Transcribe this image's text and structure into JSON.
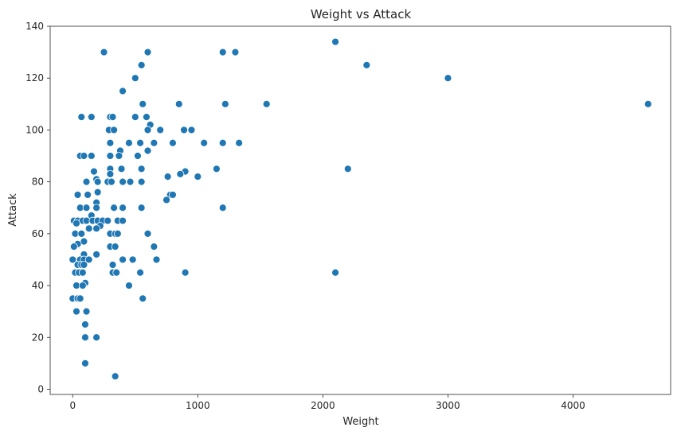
{
  "chart_data": {
    "type": "scatter",
    "title": "Weight vs Attack",
    "xlabel": "Weight",
    "ylabel": "Attack",
    "xlim": [
      -180,
      4780
    ],
    "ylim": [
      -2,
      140
    ],
    "xticks": [
      0,
      1000,
      2000,
      3000,
      4000
    ],
    "yticks": [
      0,
      20,
      40,
      60,
      80,
      100,
      120,
      140
    ],
    "grid": false,
    "legend": "none",
    "marker_color": "#1f77b4",
    "marker_edge": "#ffffff",
    "points": [
      {
        "x": 250,
        "y": 130
      },
      {
        "x": 600,
        "y": 130
      },
      {
        "x": 1200,
        "y": 130
      },
      {
        "x": 1300,
        "y": 130
      },
      {
        "x": 2100,
        "y": 134
      },
      {
        "x": 2350,
        "y": 125
      },
      {
        "x": 550,
        "y": 125
      },
      {
        "x": 500,
        "y": 120
      },
      {
        "x": 3000,
        "y": 120
      },
      {
        "x": 400,
        "y": 115
      },
      {
        "x": 560,
        "y": 110
      },
      {
        "x": 850,
        "y": 110
      },
      {
        "x": 1220,
        "y": 110
      },
      {
        "x": 1550,
        "y": 110
      },
      {
        "x": 4600,
        "y": 110
      },
      {
        "x": 70,
        "y": 105
      },
      {
        "x": 150,
        "y": 105
      },
      {
        "x": 300,
        "y": 105
      },
      {
        "x": 320,
        "y": 105
      },
      {
        "x": 500,
        "y": 105
      },
      {
        "x": 590,
        "y": 105
      },
      {
        "x": 620,
        "y": 102
      },
      {
        "x": 290,
        "y": 100
      },
      {
        "x": 330,
        "y": 100
      },
      {
        "x": 600,
        "y": 100
      },
      {
        "x": 700,
        "y": 100
      },
      {
        "x": 890,
        "y": 100
      },
      {
        "x": 950,
        "y": 100
      },
      {
        "x": 300,
        "y": 95
      },
      {
        "x": 450,
        "y": 95
      },
      {
        "x": 540,
        "y": 95
      },
      {
        "x": 650,
        "y": 95
      },
      {
        "x": 800,
        "y": 95
      },
      {
        "x": 1050,
        "y": 95
      },
      {
        "x": 1200,
        "y": 95
      },
      {
        "x": 1330,
        "y": 95
      },
      {
        "x": 380,
        "y": 92
      },
      {
        "x": 600,
        "y": 92
      },
      {
        "x": 60,
        "y": 90
      },
      {
        "x": 90,
        "y": 90
      },
      {
        "x": 150,
        "y": 90
      },
      {
        "x": 300,
        "y": 90
      },
      {
        "x": 370,
        "y": 90
      },
      {
        "x": 520,
        "y": 90
      },
      {
        "x": 170,
        "y": 84
      },
      {
        "x": 300,
        "y": 85
      },
      {
        "x": 390,
        "y": 85
      },
      {
        "x": 550,
        "y": 85
      },
      {
        "x": 900,
        "y": 84
      },
      {
        "x": 1150,
        "y": 85
      },
      {
        "x": 2200,
        "y": 85
      },
      {
        "x": 300,
        "y": 83
      },
      {
        "x": 860,
        "y": 83
      },
      {
        "x": 190,
        "y": 81
      },
      {
        "x": 760,
        "y": 82
      },
      {
        "x": 1000,
        "y": 82
      },
      {
        "x": 110,
        "y": 80
      },
      {
        "x": 200,
        "y": 80
      },
      {
        "x": 280,
        "y": 80
      },
      {
        "x": 310,
        "y": 80
      },
      {
        "x": 400,
        "y": 80
      },
      {
        "x": 460,
        "y": 80
      },
      {
        "x": 550,
        "y": 80
      },
      {
        "x": 200,
        "y": 76
      },
      {
        "x": 40,
        "y": 75
      },
      {
        "x": 120,
        "y": 75
      },
      {
        "x": 780,
        "y": 75
      },
      {
        "x": 800,
        "y": 75
      },
      {
        "x": 750,
        "y": 73
      },
      {
        "x": 190,
        "y": 72
      },
      {
        "x": 60,
        "y": 70
      },
      {
        "x": 110,
        "y": 70
      },
      {
        "x": 190,
        "y": 70
      },
      {
        "x": 330,
        "y": 70
      },
      {
        "x": 400,
        "y": 70
      },
      {
        "x": 550,
        "y": 70
      },
      {
        "x": 1200,
        "y": 70
      },
      {
        "x": 150,
        "y": 67
      },
      {
        "x": 10,
        "y": 65
      },
      {
        "x": 40,
        "y": 65
      },
      {
        "x": 80,
        "y": 65
      },
      {
        "x": 110,
        "y": 65
      },
      {
        "x": 160,
        "y": 65
      },
      {
        "x": 200,
        "y": 65
      },
      {
        "x": 240,
        "y": 65
      },
      {
        "x": 280,
        "y": 65
      },
      {
        "x": 360,
        "y": 65
      },
      {
        "x": 400,
        "y": 65
      },
      {
        "x": 30,
        "y": 64
      },
      {
        "x": 220,
        "y": 63
      },
      {
        "x": 130,
        "y": 62
      },
      {
        "x": 190,
        "y": 62
      },
      {
        "x": 20,
        "y": 60
      },
      {
        "x": 70,
        "y": 60
      },
      {
        "x": 300,
        "y": 60
      },
      {
        "x": 340,
        "y": 60
      },
      {
        "x": 360,
        "y": 60
      },
      {
        "x": 600,
        "y": 60
      },
      {
        "x": 90,
        "y": 57
      },
      {
        "x": 40,
        "y": 56
      },
      {
        "x": 10,
        "y": 55
      },
      {
        "x": 300,
        "y": 55
      },
      {
        "x": 340,
        "y": 55
      },
      {
        "x": 650,
        "y": 55
      },
      {
        "x": 90,
        "y": 52
      },
      {
        "x": 190,
        "y": 52
      },
      {
        "x": 0,
        "y": 50
      },
      {
        "x": 60,
        "y": 50
      },
      {
        "x": 90,
        "y": 50
      },
      {
        "x": 130,
        "y": 50
      },
      {
        "x": 400,
        "y": 50
      },
      {
        "x": 480,
        "y": 50
      },
      {
        "x": 670,
        "y": 50
      },
      {
        "x": 40,
        "y": 48
      },
      {
        "x": 70,
        "y": 48
      },
      {
        "x": 90,
        "y": 48
      },
      {
        "x": 320,
        "y": 48
      },
      {
        "x": 20,
        "y": 45
      },
      {
        "x": 50,
        "y": 45
      },
      {
        "x": 80,
        "y": 45
      },
      {
        "x": 320,
        "y": 45
      },
      {
        "x": 350,
        "y": 45
      },
      {
        "x": 540,
        "y": 45
      },
      {
        "x": 900,
        "y": 45
      },
      {
        "x": 2100,
        "y": 45
      },
      {
        "x": 100,
        "y": 41
      },
      {
        "x": 30,
        "y": 40
      },
      {
        "x": 80,
        "y": 40
      },
      {
        "x": 450,
        "y": 40
      },
      {
        "x": 0,
        "y": 35
      },
      {
        "x": 40,
        "y": 35
      },
      {
        "x": 60,
        "y": 35
      },
      {
        "x": 560,
        "y": 35
      },
      {
        "x": 30,
        "y": 30
      },
      {
        "x": 110,
        "y": 30
      },
      {
        "x": 100,
        "y": 25
      },
      {
        "x": 100,
        "y": 20
      },
      {
        "x": 190,
        "y": 20
      },
      {
        "x": 100,
        "y": 10
      },
      {
        "x": 340,
        "y": 5
      }
    ]
  }
}
